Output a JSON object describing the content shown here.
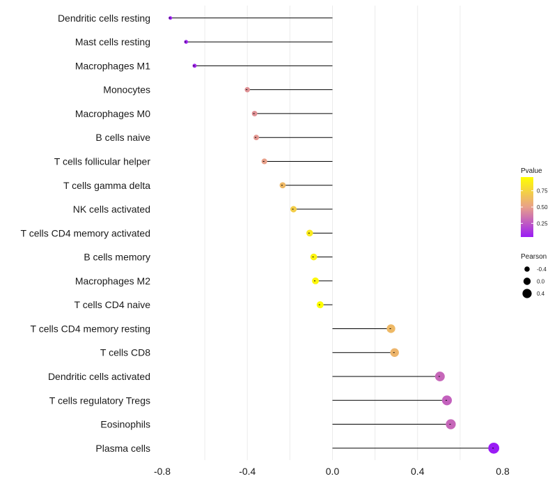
{
  "chart_data": {
    "type": "lollipop",
    "xlim": [
      -0.8,
      0.8
    ],
    "xticks": [
      -0.8,
      -0.4,
      0.0,
      0.4,
      0.8
    ],
    "xtick_labels": [
      "-0.8",
      "-0.4",
      "0.0",
      "0.4",
      "0.8"
    ],
    "xlabel": "",
    "ylabel": "",
    "color_low": "#9a1cf5",
    "color_mid": "#e8a08a",
    "color_high": "#ffff00",
    "categories": [
      "Dendritic cells resting",
      "Mast cells resting",
      "Macrophages M1",
      "Monocytes",
      "Macrophages M0",
      "B cells naive",
      "T cells follicular helper",
      "T cells gamma delta",
      "NK cells activated",
      "T cells CD4 memory activated",
      "B cells memory",
      "Macrophages M2",
      "T cells CD4 naive",
      "T cells CD4 memory resting",
      "T cells CD8",
      "Dendritic cells activated",
      "T cells regulatory  Tregs ",
      "Eosinophils",
      "Plasma cells"
    ],
    "values": [
      -0.762,
      -0.688,
      -0.648,
      -0.4,
      -0.366,
      -0.358,
      -0.32,
      -0.234,
      -0.183,
      -0.107,
      -0.088,
      -0.08,
      -0.058,
      0.275,
      0.292,
      0.505,
      0.538,
      0.556,
      0.758
    ],
    "pvalues": [
      0.05,
      0.06,
      0.08,
      0.45,
      0.45,
      0.47,
      0.5,
      0.62,
      0.72,
      0.86,
      0.9,
      0.92,
      0.96,
      0.62,
      0.6,
      0.3,
      0.28,
      0.3,
      0.04
    ],
    "legend": {
      "color_title": "Pvalue",
      "color_ticks": [
        0.25,
        0.5,
        0.75
      ],
      "color_tick_labels": [
        "0.25",
        "0.50",
        "0.75"
      ],
      "color_range": [
        0.04,
        0.96
      ],
      "size_title": "Pearson",
      "size_ticks": [
        -0.4,
        0.0,
        0.4
      ],
      "size_tick_labels": [
        "-0.4",
        "0.0",
        "0.4"
      ]
    }
  }
}
